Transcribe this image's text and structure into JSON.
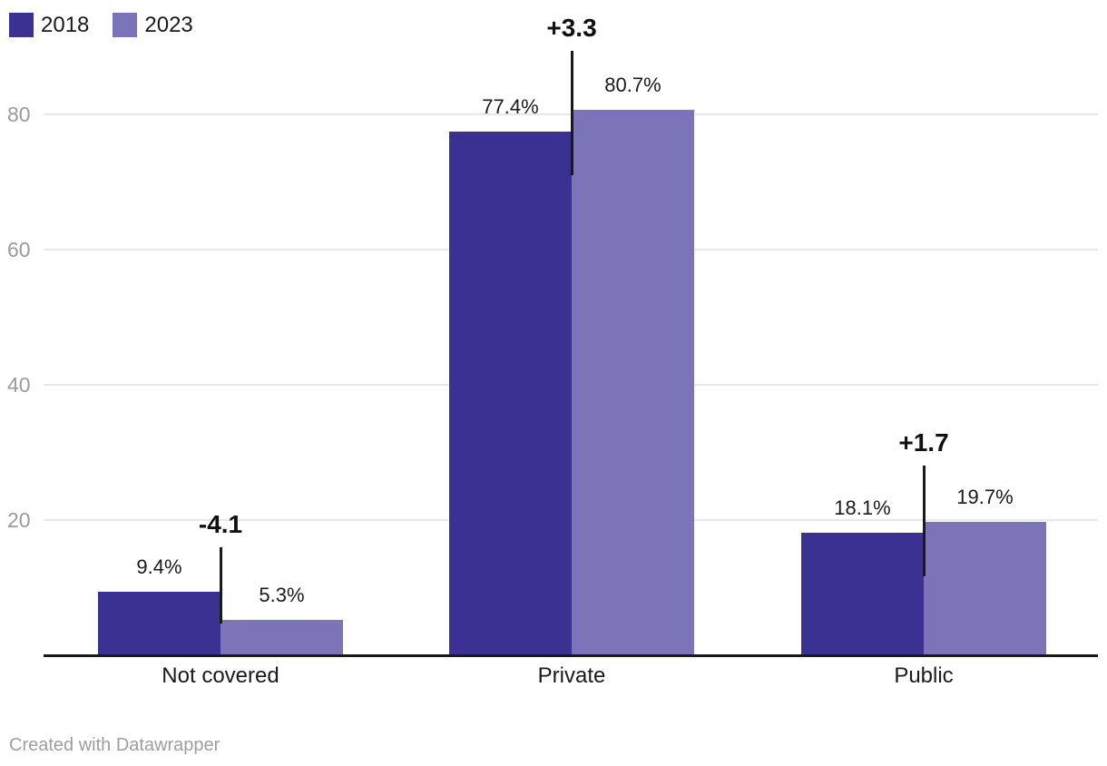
{
  "chart_data": {
    "type": "bar",
    "title": "",
    "categories": [
      "Not covered",
      "Private",
      "Public"
    ],
    "series": [
      {
        "name": "2018",
        "color": "#3a3193",
        "values": [
          9.4,
          77.4,
          18.1
        ],
        "labels": [
          "9.4%",
          "77.4%",
          "18.1%"
        ]
      },
      {
        "name": "2023",
        "color": "#7b74b8",
        "values": [
          5.3,
          80.7,
          19.7
        ],
        "labels": [
          "5.3%",
          "80.7%",
          "19.7%"
        ]
      }
    ],
    "change_annotations": [
      "-4.1",
      "+3.3",
      "+1.7"
    ],
    "y_ticks": [
      20,
      40,
      60,
      80
    ],
    "ylim": [
      0,
      93
    ],
    "unit": "%",
    "grid": true,
    "legend_position": "top-left"
  },
  "legend": {
    "items": [
      {
        "label": "2018",
        "color": "#3a3193"
      },
      {
        "label": "2023",
        "color": "#7b74b8"
      }
    ]
  },
  "footer": {
    "credit": "Created with Datawrapper"
  },
  "colors": {
    "bar_2018": "#3a3193",
    "bar_2023": "#7b74b8",
    "gridline": "#e8e8e8",
    "axis_line": "#1a1a1a",
    "connector": "#1a1a1a",
    "tick_label": "#9b9b9b",
    "category_label": "#1a1a1a",
    "value_label": "#1a1a1a",
    "change_label": "#111111",
    "footer_text": "#9e9e9e",
    "background": "#ffffff"
  }
}
